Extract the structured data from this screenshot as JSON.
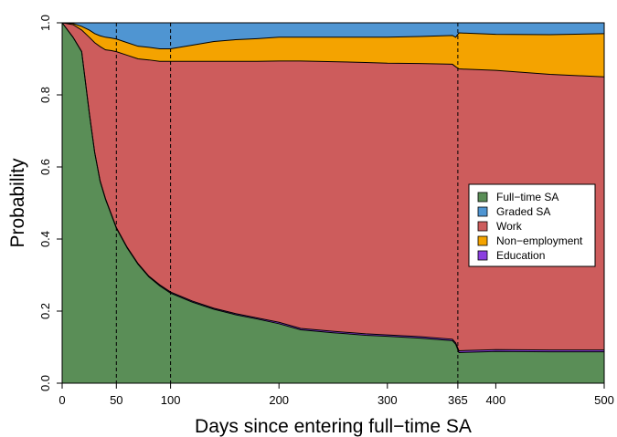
{
  "chart_data": {
    "type": "area",
    "title": "",
    "xlabel": "Days since entering full−time SA",
    "ylabel": "Probability",
    "xlim": [
      0,
      500
    ],
    "ylim": [
      0,
      1
    ],
    "x_ticks": [
      0,
      50,
      100,
      200,
      300,
      365,
      400,
      500
    ],
    "x_tick_labels": [
      "0",
      "50",
      "100",
      "200",
      "300",
      "365",
      "400",
      "500"
    ],
    "y_ticks": [
      0,
      0.2,
      0.4,
      0.6,
      0.8,
      1.0
    ],
    "y_tick_labels": [
      "0.0",
      "0.2",
      "0.4",
      "0.6",
      "0.8",
      "1.0"
    ],
    "vlines": [
      50,
      100,
      365
    ],
    "grid": false,
    "stacked": true,
    "legend_position": "right",
    "x": [
      0,
      10,
      18,
      25,
      30,
      35,
      40,
      45,
      50,
      60,
      70,
      80,
      90,
      100,
      120,
      140,
      160,
      180,
      200,
      220,
      250,
      280,
      300,
      330,
      360,
      363,
      366,
      400,
      450,
      500
    ],
    "series": [
      {
        "name": "Full−time SA",
        "color": "#5a8e57",
        "values": [
          1.0,
          0.96,
          0.92,
          0.75,
          0.64,
          0.56,
          0.51,
          0.47,
          0.43,
          0.375,
          0.33,
          0.295,
          0.27,
          0.25,
          0.225,
          0.205,
          0.19,
          0.178,
          0.165,
          0.148,
          0.14,
          0.133,
          0.13,
          0.125,
          0.118,
          0.108,
          0.085,
          0.088,
          0.087,
          0.087
        ]
      },
      {
        "name": "Education",
        "color": "#8b3fe0",
        "values": [
          0,
          0,
          0,
          0.001,
          0.001,
          0.002,
          0.002,
          0.002,
          0.002,
          0.002,
          0.002,
          0.002,
          0.003,
          0.003,
          0.003,
          0.003,
          0.003,
          0.003,
          0.004,
          0.004,
          0.004,
          0.004,
          0.004,
          0.004,
          0.004,
          0.004,
          0.005,
          0.005,
          0.005,
          0.005
        ]
      },
      {
        "name": "Work",
        "color": "#cd5c5c",
        "values": [
          0,
          0.035,
          0.06,
          0.209,
          0.304,
          0.372,
          0.413,
          0.451,
          0.488,
          0.533,
          0.568,
          0.6,
          0.62,
          0.64,
          0.665,
          0.685,
          0.7,
          0.712,
          0.725,
          0.742,
          0.748,
          0.753,
          0.754,
          0.758,
          0.763,
          0.766,
          0.782,
          0.775,
          0.765,
          0.758
        ]
      },
      {
        "name": "Non−employment",
        "color": "#f4a300",
        "values": [
          0,
          0.003,
          0.01,
          0.02,
          0.025,
          0.03,
          0.035,
          0.035,
          0.035,
          0.035,
          0.035,
          0.035,
          0.035,
          0.035,
          0.045,
          0.055,
          0.06,
          0.063,
          0.066,
          0.066,
          0.068,
          0.07,
          0.072,
          0.075,
          0.08,
          0.082,
          0.1,
          0.1,
          0.11,
          0.12
        ]
      },
      {
        "name": "Graded SA",
        "color": "#4f95d2",
        "values": [
          0,
          0.002,
          0.01,
          0.02,
          0.03,
          0.036,
          0.04,
          0.042,
          0.045,
          0.055,
          0.065,
          0.068,
          0.072,
          0.072,
          0.062,
          0.052,
          0.047,
          0.044,
          0.04,
          0.04,
          0.04,
          0.04,
          0.04,
          0.038,
          0.035,
          0.04,
          0.028,
          0.032,
          0.033,
          0.03
        ]
      }
    ],
    "legend": [
      "Full−time SA",
      "Graded SA",
      "Work",
      "Non−employment",
      "Education"
    ]
  }
}
